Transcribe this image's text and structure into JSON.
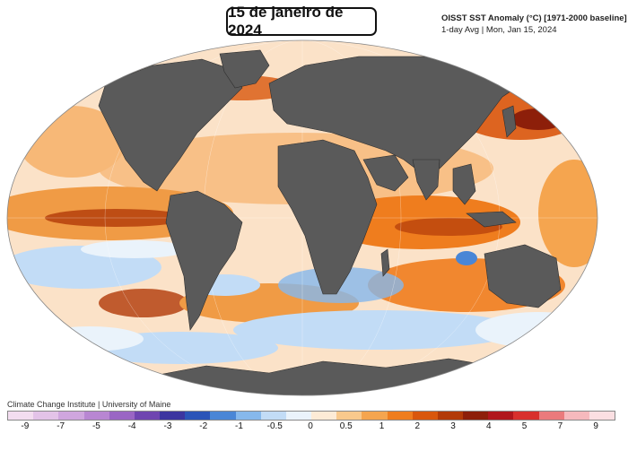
{
  "title": "15 de janeiro de 2024",
  "header": {
    "line1": "OISST SST Anomaly (°C) [1971-2000 baseline]",
    "line2": "1-day Avg | Mon, Jan 15, 2024"
  },
  "credit": "Climate Change Institute | University of Maine",
  "colorbar": {
    "colors": [
      "#f3ddf0",
      "#e3c3e8",
      "#cfa6de",
      "#b886d2",
      "#9a66c4",
      "#6f45b0",
      "#3c35a0",
      "#2b54b8",
      "#4a86d6",
      "#86b8ec",
      "#c2dcf6",
      "#eaf3fb",
      "#fdebd6",
      "#f9c98c",
      "#f5a54f",
      "#ef7d1e",
      "#d9570d",
      "#b23a08",
      "#8d1f0a",
      "#b0161c",
      "#d8302d",
      "#ea7a7c",
      "#f6b9bd",
      "#fbdfe2"
    ],
    "ticks": [
      "-9",
      "-7",
      "-5",
      "-4",
      "-3",
      "-2",
      "-1",
      "-0.5",
      "0",
      "0.5",
      "1",
      "2",
      "3",
      "4",
      "5",
      "7",
      "9"
    ]
  },
  "colors": {
    "land": "#5a5a5a",
    "ocean_warm": "#f5a54f",
    "ocean_hot": "#b23a08",
    "ocean_neutral": "#fdebd6",
    "ocean_cool": "#c2dcf6",
    "ocean_cold": "#4a86d6"
  }
}
